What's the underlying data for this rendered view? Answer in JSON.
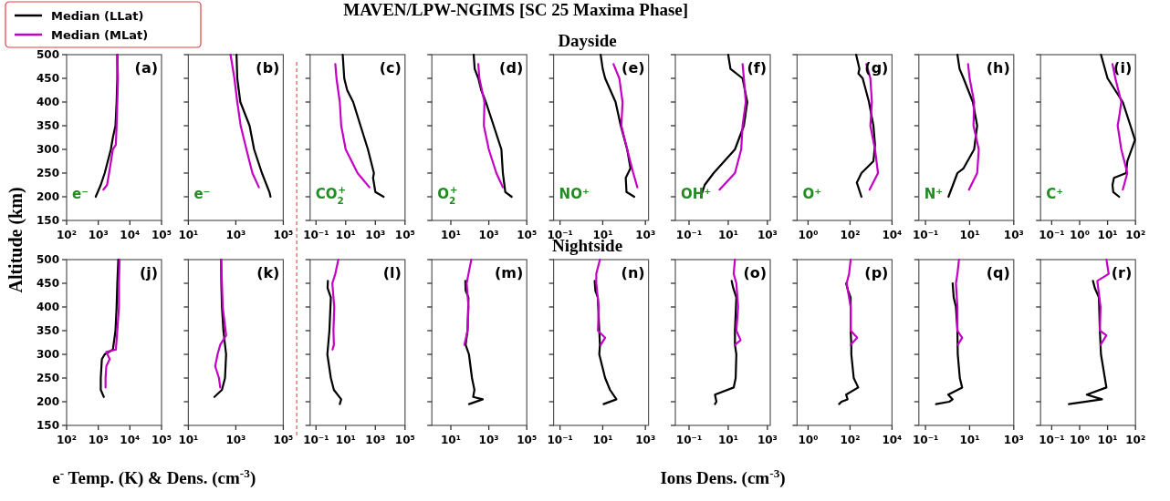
{
  "chart_data": [
    {
      "type": "line",
      "ylabel": "Altitude (km)",
      "legend": "top left",
      "log": "x",
      "xlim": [
        100,
        100000
      ],
      "xticks": [
        {
          "value": 100,
          "label": "10²"
        },
        {
          "value": 1000,
          "label": "10³"
        },
        {
          "value": 10000,
          "label": "10⁴"
        },
        {
          "value": 100000,
          "label": "10⁵"
        }
      ],
      "ylim": [
        150,
        500
      ],
      "yticks": [
        150,
        200,
        250,
        300,
        350,
        400,
        450,
        500
      ],
      "annotations": [
        "(a)",
        "e⁻"
      ],
      "series": [
        {
          "name": "Median (LLat)",
          "color": "#000000",
          "x": [
            4000,
            4000,
            3800,
            3500,
            2900,
            2500,
            2000,
            1600,
            1200,
            830
          ],
          "values": [
            500,
            450,
            400,
            350,
            325,
            300,
            275,
            250,
            225,
            200
          ]
        },
        {
          "name": "Median (MLat)",
          "color": "#c400c4",
          "x": [
            4000,
            4200,
            4000,
            3800,
            3600,
            2900,
            2200,
            1900,
            1450
          ],
          "values": [
            500,
            450,
            400,
            350,
            310,
            300,
            250,
            225,
            215
          ]
        }
      ]
    },
    {
      "type": "line",
      "log": "x",
      "tick_labels": "x",
      "xlim": [
        10,
        100000
      ],
      "xticks": [
        {
          "value": 10,
          "label": "10¹"
        },
        {
          "value": 1000,
          "label": "10³"
        },
        {
          "value": 100000,
          "label": "10⁵"
        }
      ],
      "ylim": [
        150,
        500
      ],
      "yticks": [
        150,
        200,
        250,
        300,
        350,
        400,
        450,
        500
      ],
      "annotations": [
        "(b)",
        "e⁻"
      ],
      "series": [
        {
          "color": "#000000",
          "x": [
            1070,
            1150,
            1550,
            3800,
            5900,
            12600,
            26000,
            29000
          ],
          "values": [
            500,
            450,
            400,
            350,
            300,
            250,
            210,
            200
          ]
        },
        {
          "color": "#c400c4",
          "x": [
            600,
            870,
            1150,
            1600,
            2800,
            5000,
            9400
          ],
          "values": [
            500,
            450,
            400,
            350,
            300,
            250,
            220
          ]
        }
      ]
    },
    {
      "type": "line",
      "log": "x",
      "tick_labels": "x",
      "xlim": [
        0.04,
        100000
      ],
      "xticks": [
        {
          "value": 0.1,
          "label": "10⁻¹"
        },
        {
          "value": 10,
          "label": "10¹"
        },
        {
          "value": 1000,
          "label": "10³"
        },
        {
          "value": 100000,
          "label": "10⁵"
        }
      ],
      "ylim": [
        150,
        500
      ],
      "yticks": [
        150,
        200,
        250,
        300,
        350,
        400,
        450,
        500
      ],
      "annotations": [
        "(c)",
        "CO$_{2}$$^{+}$"
      ],
      "series": [
        {
          "color": "#000000",
          "x": [
            6.3,
            8,
            12.6,
            32,
            100,
            316,
            800,
            700,
            1000,
            3600
          ],
          "values": [
            500,
            450,
            425,
            400,
            350,
            300,
            250,
            240,
            210,
            200
          ]
        },
        {
          "color": "#c400c4",
          "x": [
            2,
            2.4,
            4,
            5,
            10,
            63,
            400
          ],
          "values": [
            480,
            450,
            400,
            350,
            300,
            250,
            220
          ]
        }
      ]
    },
    {
      "type": "line",
      "title": "MAVEN/LPW-NGIMS [SC 25 Maxima Phase]",
      "log": "x",
      "tick_labels": "x",
      "xlim": [
        1,
        100000
      ],
      "xticks": [
        {
          "value": 10,
          "label": "10¹"
        },
        {
          "value": 1000,
          "label": "10³"
        },
        {
          "value": 100000,
          "label": "10⁵"
        }
      ],
      "ylim": [
        150,
        500
      ],
      "yticks": [
        150,
        200,
        250,
        300,
        350,
        400,
        450,
        500
      ],
      "annotations": [
        "(d)",
        "O$_{2}$$^{+}$"
      ],
      "series": [
        {
          "color": "#000000",
          "x": [
            160,
            180,
            280,
            400,
            700,
            1800,
            4600,
            5500,
            7400,
            16000
          ],
          "values": [
            500,
            470,
            450,
            425,
            400,
            350,
            300,
            250,
            210,
            200
          ]
        },
        {
          "color": "#c400c4",
          "x": [
            280,
            320,
            590,
            550,
            1000,
            2500,
            5500
          ],
          "values": [
            480,
            450,
            400,
            350,
            300,
            250,
            220
          ]
        }
      ]
    },
    {
      "type": "line",
      "subtitle": "Dayside",
      "log": "x",
      "tick_labels": "x",
      "xlim": [
        0.05,
        1400
      ],
      "xticks": [
        {
          "value": 0.1,
          "label": "10⁻¹"
        },
        {
          "value": 10,
          "label": "10¹"
        },
        {
          "value": 1000,
          "label": "10³"
        }
      ],
      "ylim": [
        150,
        500
      ],
      "yticks": [
        150,
        200,
        250,
        300,
        350,
        400,
        450,
        500
      ],
      "annotations": [
        "(e)",
        "NO⁺"
      ],
      "series": [
        {
          "color": "#000000",
          "x": [
            8,
            10,
            13,
            40,
            70,
            140,
            200,
            120,
            130,
            300
          ],
          "values": [
            500,
            470,
            450,
            400,
            350,
            300,
            260,
            240,
            210,
            200
          ]
        },
        {
          "color": "#c400c4",
          "x": [
            32,
            60,
            85,
            75,
            140,
            270,
            420
          ],
          "values": [
            480,
            450,
            400,
            350,
            300,
            250,
            220
          ]
        }
      ]
    },
    {
      "type": "line",
      "log": "x",
      "tick_labels": "x",
      "xlim": [
        0.02,
        1400
      ],
      "xticks": [
        {
          "value": 0.1,
          "label": "10⁻¹"
        },
        {
          "value": 10,
          "label": "10¹"
        },
        {
          "value": 1000,
          "label": "10³"
        }
      ],
      "ylim": [
        150,
        500
      ],
      "yticks": [
        150,
        200,
        250,
        300,
        350,
        400,
        450,
        500
      ],
      "annotations": [
        "(f)",
        "OH⁺"
      ],
      "series": [
        {
          "color": "#000000",
          "x": [
            10,
            13,
            54,
            94,
            63,
            22,
            1.8,
            0.63,
            0.4
          ],
          "values": [
            500,
            470,
            450,
            400,
            350,
            300,
            250,
            225,
            200
          ]
        },
        {
          "color": "#c400c4",
          "x": [
            54,
            63,
            79,
            54,
            46,
            22,
            3.6
          ],
          "values": [
            480,
            450,
            400,
            350,
            300,
            250,
            215
          ]
        }
      ]
    },
    {
      "type": "line",
      "log": "x",
      "tick_labels": "x",
      "xlim": [
        0.3,
        10000
      ],
      "xticks": [
        {
          "value": 1,
          "label": "10⁰"
        },
        {
          "value": 100,
          "label": "10²"
        },
        {
          "value": 10000,
          "label": "10⁴"
        }
      ],
      "ylim": [
        150,
        500
      ],
      "yticks": [
        150,
        200,
        250,
        300,
        350,
        400,
        450,
        500
      ],
      "annotations": [
        "(g)",
        "O⁺"
      ],
      "series": [
        {
          "color": "#000000",
          "x": [
            195,
            280,
            250,
            400,
            800,
            1300,
            1550,
            1300,
            350,
            210,
            350
          ],
          "values": [
            500,
            470,
            460,
            450,
            400,
            350,
            310,
            275,
            250,
            230,
            200
          ]
        },
        {
          "color": "#c400c4",
          "x": [
            600,
            930,
            1100,
            930,
            1550,
            2150,
            850
          ],
          "values": [
            480,
            450,
            400,
            350,
            300,
            250,
            215
          ]
        }
      ]
    },
    {
      "type": "line",
      "log": "x",
      "tick_labels": "x",
      "xlim": [
        0.05,
        1000
      ],
      "xticks": [
        {
          "value": 0.1,
          "label": "10⁻¹"
        },
        {
          "value": 10,
          "label": "10¹"
        },
        {
          "value": 1000,
          "label": "10³"
        }
      ],
      "ylim": [
        150,
        500
      ],
      "yticks": [
        150,
        200,
        250,
        300,
        350,
        400,
        450,
        500
      ],
      "annotations": [
        "(h)",
        "N⁺"
      ],
      "series": [
        {
          "color": "#000000",
          "x": [
            2.8,
            3.5,
            5.3,
            14,
            22,
            16,
            5.3,
            2.8,
            1.1
          ],
          "values": [
            500,
            470,
            450,
            400,
            350,
            300,
            260,
            250,
            200
          ]
        },
        {
          "color": "#c400c4",
          "x": [
            8.5,
            10,
            16,
            15,
            26,
            22,
            9.3
          ],
          "values": [
            480,
            450,
            400,
            350,
            300,
            250,
            215
          ]
        }
      ]
    },
    {
      "type": "line",
      "log": "x",
      "tick_labels": "x",
      "xlim": [
        0.04,
        100
      ],
      "xticks": [
        {
          "value": 0.1,
          "label": "10⁻¹"
        },
        {
          "value": 1,
          "label": "10⁰"
        },
        {
          "value": 10,
          "label": "10¹"
        },
        {
          "value": 100,
          "label": "10²"
        }
      ],
      "ylim": [
        150,
        500
      ],
      "yticks": [
        150,
        200,
        250,
        300,
        350,
        400,
        450,
        500
      ],
      "annotations": [
        "(i)",
        "C⁺"
      ],
      "series": [
        {
          "color": "#000000",
          "x": [
            5.8,
            10,
            35,
            66,
            96,
            51,
            46,
            17,
            15,
            16,
            26
          ],
          "values": [
            500,
            450,
            400,
            350,
            320,
            275,
            250,
            240,
            225,
            210,
            200
          ]
        },
        {
          "color": "#c400c4",
          "x": [
            15,
            19,
            31,
            27,
            23,
            31,
            51,
            35
          ],
          "values": [
            480,
            450,
            400,
            375,
            350,
            300,
            250,
            215
          ]
        }
      ]
    },
    {
      "type": "line",
      "xlabel": "e$^{-}$ Temp. (K) & Dens. (cm$^{-3}$)",
      "log": "x",
      "xlim": [
        100,
        100000
      ],
      "xticks": [
        {
          "value": 100,
          "label": "10²"
        },
        {
          "value": 1000,
          "label": "10³"
        },
        {
          "value": 10000,
          "label": "10⁴"
        },
        {
          "value": 100000,
          "label": "10⁵"
        }
      ],
      "ylim": [
        150,
        500
      ],
      "yticks": [
        150,
        200,
        250,
        300,
        350,
        400,
        450,
        500
      ],
      "annotations": [
        "(j)"
      ],
      "series": [
        {
          "color": "#000000",
          "x": [
            4300,
            4000,
            3800,
            3500,
            2900,
            1600,
            1300,
            1200,
            1200,
            1500
          ],
          "values": [
            500,
            450,
            400,
            350,
            310,
            300,
            290,
            250,
            225,
            210
          ]
        },
        {
          "color": "#c400c4",
          "x": [
            4700,
            4500,
            4500,
            4000,
            3600,
            1800,
            2300,
            1800,
            1700,
            1700
          ],
          "values": [
            500,
            450,
            400,
            350,
            310,
            305,
            290,
            275,
            250,
            230
          ]
        }
      ]
    },
    {
      "type": "line",
      "log": "x",
      "tick_labels": "x",
      "xlim": [
        10,
        100000
      ],
      "xticks": [
        {
          "value": 10,
          "label": "10¹"
        },
        {
          "value": 1000,
          "label": "10³"
        },
        {
          "value": 100000,
          "label": "10⁵"
        }
      ],
      "ylim": [
        150,
        500
      ],
      "yticks": [
        150,
        200,
        250,
        300,
        350,
        400,
        450,
        500
      ],
      "annotations": [
        "(k)"
      ],
      "series": [
        {
          "color": "#000000",
          "x": [
            240,
            245,
            260,
            300,
            390,
            350,
            260,
            125
          ],
          "values": [
            500,
            450,
            400,
            350,
            300,
            250,
            225,
            210
          ]
        },
        {
          "color": "#c400c4",
          "x": [
            240,
            260,
            280,
            390,
            220,
            170,
            135,
            195,
            220
          ],
          "values": [
            500,
            450,
            400,
            340,
            320,
            300,
            275,
            250,
            230
          ]
        }
      ]
    },
    {
      "type": "line",
      "log": "x",
      "tick_labels": "x",
      "xlim": [
        0.04,
        100000
      ],
      "xticks": [
        {
          "value": 0.1,
          "label": "10⁻¹"
        },
        {
          "value": 10,
          "label": "10¹"
        },
        {
          "value": 1000,
          "label": "10³"
        },
        {
          "value": 100000,
          "label": "10⁵"
        }
      ],
      "ylim": [
        150,
        500
      ],
      "yticks": [
        150,
        200,
        250,
        300,
        350,
        400,
        450,
        500
      ],
      "annotations": [
        "(l)"
      ],
      "series": [
        {
          "color": "#000000",
          "x": [
            0.63,
            0.6,
            1,
            0.8,
            0.58,
            1,
            1.6,
            5,
            4
          ],
          "values": [
            455,
            440,
            420,
            350,
            300,
            250,
            225,
            205,
            195
          ]
        },
        {
          "color": "#c400c4",
          "x": [
            3.2,
            2,
            1.26,
            1.7,
            1.5,
            1.6,
            1.3
          ],
          "values": [
            500,
            470,
            450,
            400,
            350,
            320,
            310
          ]
        }
      ]
    },
    {
      "type": "line",
      "log": "x",
      "tick_labels": "x",
      "xlim": [
        1,
        100000
      ],
      "xticks": [
        {
          "value": 10,
          "label": "10¹"
        },
        {
          "value": 1000,
          "label": "10³"
        },
        {
          "value": 100000,
          "label": "10⁵"
        }
      ],
      "ylim": [
        150,
        500
      ],
      "yticks": [
        150,
        200,
        250,
        300,
        350,
        400,
        450,
        500
      ],
      "annotations": [
        "(m)"
      ],
      "series": [
        {
          "color": "#000000",
          "x": [
            58,
            60,
            85,
            76,
            60,
            90,
            130,
            175,
            150,
            480,
            91
          ],
          "values": [
            455,
            435,
            420,
            350,
            320,
            300,
            250,
            225,
            210,
            205,
            195
          ]
        },
        {
          "color": "#c400c4",
          "x": [
            120,
            85,
            68,
            85,
            76,
            52
          ],
          "values": [
            500,
            470,
            450,
            400,
            350,
            320
          ]
        }
      ]
    },
    {
      "type": "line",
      "subtitle": "Nightside",
      "log": "x",
      "tick_labels": "x",
      "xlim": [
        0.05,
        1400
      ],
      "xticks": [
        {
          "value": 0.1,
          "label": "10⁻¹"
        },
        {
          "value": 10,
          "label": "10¹"
        },
        {
          "value": 1000,
          "label": "10³"
        }
      ],
      "ylim": [
        150,
        500
      ],
      "yticks": [
        150,
        200,
        250,
        300,
        350,
        400,
        450,
        500
      ],
      "annotations": [
        "(n)"
      ],
      "series": [
        {
          "color": "#000000",
          "x": [
            4.2,
            4.5,
            5.9,
            6.9,
            7.4,
            6.9,
            13,
            22,
            44,
            11
          ],
          "values": [
            455,
            435,
            420,
            350,
            320,
            300,
            250,
            225,
            205,
            195
          ]
        },
        {
          "color": "#c400c4",
          "x": [
            7.4,
            5,
            5,
            6.5,
            6,
            13,
            8
          ],
          "values": [
            500,
            470,
            450,
            400,
            350,
            335,
            320
          ]
        }
      ]
    },
    {
      "type": "line",
      "xlabel": "Ions Dens. (cm$^{-3}$)",
      "log": "x",
      "tick_labels": "x",
      "xlim": [
        0.02,
        1400
      ],
      "xticks": [
        {
          "value": 0.1,
          "label": "10⁻¹"
        },
        {
          "value": 10,
          "label": "10¹"
        },
        {
          "value": 1000,
          "label": "10³"
        }
      ],
      "ylim": [
        150,
        500
      ],
      "yticks": [
        150,
        200,
        250,
        300,
        350,
        400,
        450,
        500
      ],
      "annotations": [
        "(o)"
      ],
      "series": [
        {
          "color": "#000000",
          "x": [
            15,
            18,
            26,
            22,
            22,
            26,
            24,
            19,
            2.1,
            2.5,
            2.1
          ],
          "values": [
            455,
            440,
            420,
            350,
            320,
            300,
            250,
            230,
            215,
            200,
            195
          ]
        },
        {
          "color": "#c400c4",
          "x": [
            22,
            19,
            26,
            32,
            26,
            43,
            22
          ],
          "values": [
            500,
            470,
            450,
            400,
            350,
            330,
            320
          ]
        }
      ]
    },
    {
      "type": "line",
      "log": "x",
      "tick_labels": "x",
      "xlim": [
        0.3,
        10000
      ],
      "xticks": [
        {
          "value": 1,
          "label": "10⁰"
        },
        {
          "value": 100,
          "label": "10²"
        },
        {
          "value": 10000,
          "label": "10⁴"
        }
      ],
      "ylim": [
        150,
        500
      ],
      "yticks": [
        150,
        200,
        250,
        300,
        350,
        400,
        450,
        500
      ],
      "annotations": [
        "(p)"
      ],
      "series": [
        {
          "color": "#000000",
          "x": [
            65,
            80,
            107,
            107,
            115,
            115,
            150,
            245,
            65,
            76,
            39,
            30
          ],
          "values": [
            450,
            435,
            420,
            350,
            320,
            300,
            250,
            230,
            215,
            205,
            200,
            195
          ]
        },
        {
          "color": "#c400c4",
          "x": [
            107,
            90,
            69,
            107,
            107,
            220,
            107
          ],
          "values": [
            500,
            470,
            450,
            400,
            350,
            335,
            320
          ]
        }
      ]
    },
    {
      "type": "line",
      "log": "x",
      "tick_labels": "x",
      "xlim": [
        0.05,
        1000
      ],
      "xticks": [
        {
          "value": 0.1,
          "label": "10⁻¹"
        },
        {
          "value": 10,
          "label": "10¹"
        },
        {
          "value": 1000,
          "label": "10³"
        }
      ],
      "ylim": [
        150,
        500
      ],
      "yticks": [
        150,
        200,
        250,
        300,
        350,
        400,
        450,
        500
      ],
      "annotations": [
        "(q)"
      ],
      "series": [
        {
          "color": "#000000",
          "x": [
            1.7,
            1.9,
            2.4,
            2.8,
            2.9,
            3.6,
            4.6,
            1.07,
            1.7,
            1.2,
            0.3
          ],
          "values": [
            450,
            420,
            400,
            350,
            300,
            250,
            230,
            215,
            205,
            200,
            195
          ]
        },
        {
          "color": "#c400c4",
          "x": [
            3.3,
            2.8,
            2.4,
            2.8,
            2.8,
            4.6,
            2.9
          ],
          "values": [
            500,
            470,
            450,
            400,
            350,
            335,
            320
          ]
        }
      ]
    },
    {
      "type": "line",
      "log": "x",
      "tick_labels": "x",
      "xlim": [
        0.04,
        100
      ],
      "xticks": [
        {
          "value": 0.1,
          "label": "10⁻¹"
        },
        {
          "value": 1,
          "label": "10⁰"
        },
        {
          "value": 10,
          "label": "10¹"
        },
        {
          "value": 100,
          "label": "10²"
        }
      ],
      "ylim": [
        150,
        500
      ],
      "yticks": [
        150,
        200,
        250,
        300,
        350,
        400,
        450,
        500
      ],
      "annotations": [
        "(r)"
      ],
      "series": [
        {
          "color": "#000000",
          "x": [
            3,
            3.5,
            4.9,
            5.3,
            5.8,
            8,
            9.1,
            1.8,
            6.3,
            0.41
          ],
          "values": [
            455,
            440,
            420,
            350,
            300,
            250,
            230,
            215,
            205,
            195
          ]
        },
        {
          "color": "#c400c4",
          "x": [
            9.1,
            11,
            4.3,
            5.6,
            5.3,
            9.1,
            5.6
          ],
          "values": [
            500,
            470,
            455,
            400,
            350,
            340,
            320
          ]
        }
      ]
    }
  ]
}
